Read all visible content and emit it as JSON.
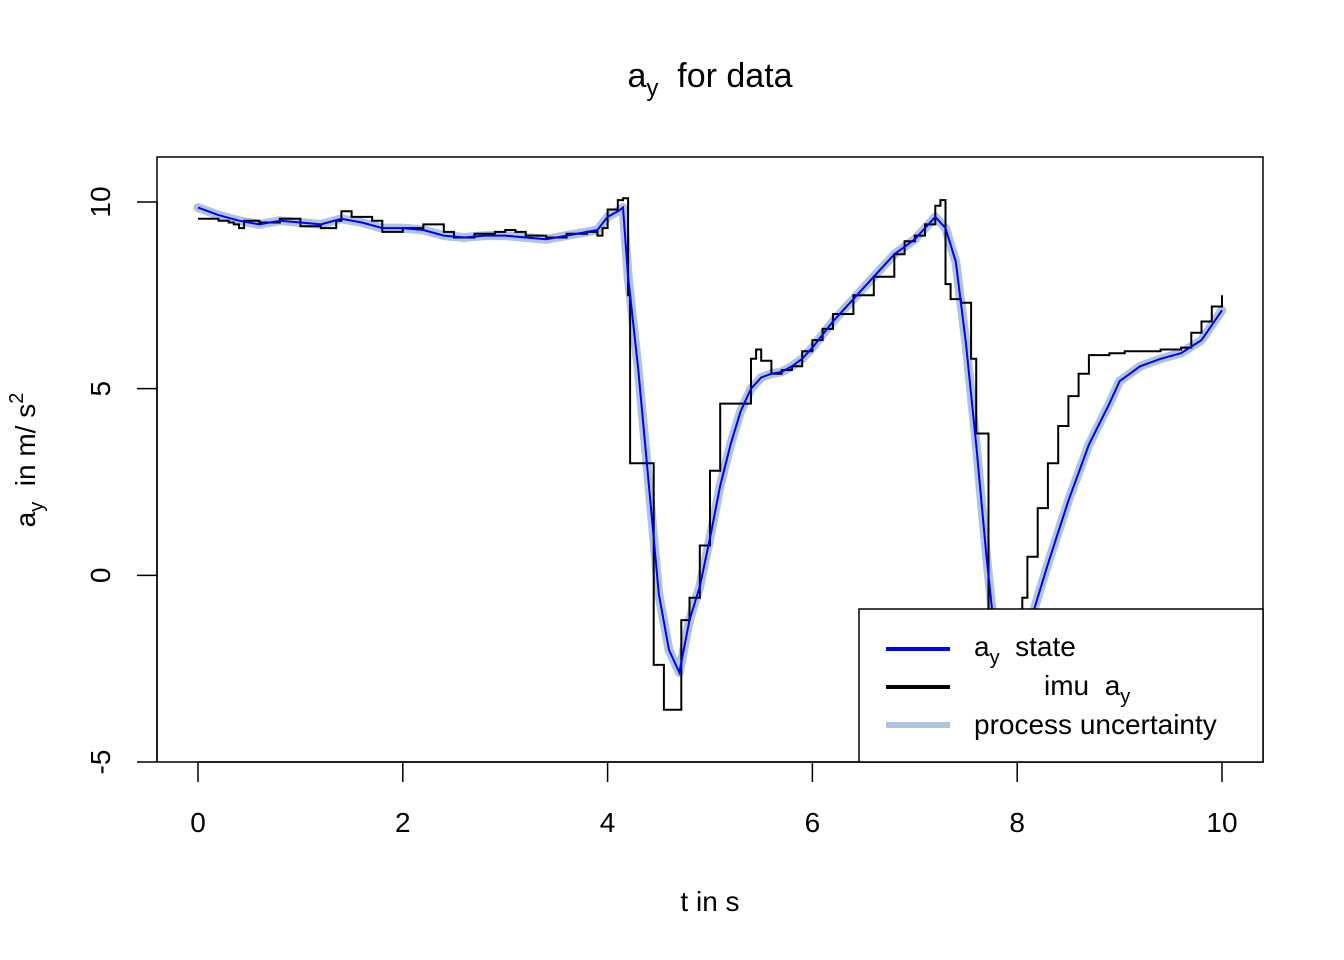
{
  "chart_data": {
    "type": "line",
    "title": {
      "main": "a",
      "sub": "y",
      "rest": "  for data"
    },
    "xlabel": "t in s",
    "ylabel": {
      "main": "a",
      "sub": "y",
      "rest": "  in m/ s",
      "sup": "2"
    },
    "xlim": [
      0,
      10
    ],
    "ylim": [
      -5,
      10
    ],
    "xticks": [
      "0",
      "2",
      "4",
      "6",
      "8",
      "10"
    ],
    "yticks": [
      "-5",
      "0",
      "5",
      "10"
    ],
    "legend_position": "bottom-right",
    "colors": {
      "state": "#0000ff",
      "imu": "#000000",
      "uncertainty": "#b0c4de"
    },
    "legend": [
      {
        "main": "a",
        "sub": "y",
        "rest": "  state",
        "series": "state"
      },
      {
        "main": "imu  a",
        "sub": "y",
        "rest": "",
        "series": "imu"
      },
      {
        "main": "process uncertainty",
        "sub": "",
        "rest": "",
        "series": "uncertainty"
      }
    ],
    "series": [
      {
        "name": "imu",
        "x": [
          0,
          0.2,
          0.3,
          0.35,
          0.4,
          0.45,
          0.6,
          0.8,
          1.0,
          1.2,
          1.35,
          1.4,
          1.5,
          1.7,
          1.8,
          2.0,
          2.2,
          2.4,
          2.5,
          2.7,
          2.9,
          3.0,
          3.1,
          3.2,
          3.4,
          3.6,
          3.8,
          3.9,
          3.95,
          4.0,
          4.1,
          4.15,
          4.2,
          4.22,
          4.35,
          4.45,
          4.55,
          4.6,
          4.65,
          4.7,
          4.72,
          4.8,
          4.9,
          5.0,
          5.1,
          5.2,
          5.35,
          5.4,
          5.45,
          5.5,
          5.6,
          5.7,
          5.8,
          5.9,
          6.0,
          6.1,
          6.2,
          6.4,
          6.6,
          6.8,
          6.9,
          7.0,
          7.1,
          7.2,
          7.25,
          7.3,
          7.35,
          7.45,
          7.55,
          7.6,
          7.7,
          7.72,
          7.8,
          7.9,
          8.0,
          8.05,
          8.1,
          8.2,
          8.3,
          8.4,
          8.5,
          8.6,
          8.7,
          8.8,
          8.9,
          9.0,
          9.05,
          9.2,
          9.4,
          9.6,
          9.7,
          9.8,
          9.9,
          10.0
        ],
        "y": [
          9.55,
          9.5,
          9.45,
          9.4,
          9.3,
          9.5,
          9.45,
          9.55,
          9.35,
          9.3,
          9.5,
          9.75,
          9.6,
          9.5,
          9.2,
          9.3,
          9.4,
          9.2,
          9.05,
          9.15,
          9.2,
          9.25,
          9.2,
          9.1,
          9.05,
          9.15,
          9.2,
          9.1,
          9.3,
          9.8,
          10.05,
          10.1,
          7.5,
          3.0,
          3.0,
          -2.4,
          -3.6,
          -3.6,
          -3.6,
          -3.6,
          -1.2,
          -0.6,
          0.8,
          2.8,
          4.6,
          4.6,
          4.6,
          5.8,
          6.05,
          5.75,
          5.4,
          5.5,
          5.6,
          6.0,
          6.3,
          6.6,
          7.0,
          7.5,
          8.0,
          8.6,
          8.95,
          9.1,
          9.4,
          9.9,
          10.05,
          7.8,
          7.4,
          7.3,
          5.8,
          3.8,
          3.8,
          -1.0,
          -2.5,
          -2.5,
          -1.5,
          -0.6,
          0.5,
          1.8,
          3.0,
          4.0,
          4.8,
          5.4,
          5.9,
          5.9,
          5.95,
          5.95,
          6.0,
          6.0,
          6.05,
          6.1,
          6.5,
          6.8,
          7.2,
          7.5
        ]
      },
      {
        "name": "state",
        "x": [
          0,
          0.2,
          0.4,
          0.6,
          0.8,
          1.0,
          1.2,
          1.4,
          1.6,
          1.8,
          2.0,
          2.2,
          2.4,
          2.6,
          2.8,
          3.0,
          3.2,
          3.4,
          3.6,
          3.8,
          3.9,
          4.0,
          4.1,
          4.15,
          4.2,
          4.3,
          4.4,
          4.5,
          4.6,
          4.7,
          4.8,
          4.9,
          5.0,
          5.1,
          5.2,
          5.3,
          5.4,
          5.5,
          5.6,
          5.7,
          5.8,
          5.9,
          6.0,
          6.2,
          6.4,
          6.6,
          6.8,
          7.0,
          7.2,
          7.3,
          7.4,
          7.5,
          7.6,
          7.7,
          7.75,
          7.8,
          7.9,
          8.0,
          8.1,
          8.3,
          8.5,
          8.7,
          8.9,
          9.0,
          9.2,
          9.4,
          9.6,
          9.8,
          10.0
        ],
        "y": [
          9.85,
          9.65,
          9.5,
          9.4,
          9.5,
          9.45,
          9.4,
          9.55,
          9.45,
          9.3,
          9.3,
          9.25,
          9.1,
          9.05,
          9.1,
          9.1,
          9.05,
          9.0,
          9.1,
          9.2,
          9.25,
          9.6,
          9.75,
          9.85,
          8.0,
          5.5,
          2.5,
          -0.5,
          -2.0,
          -2.6,
          -1.2,
          -0.3,
          1.0,
          2.4,
          3.5,
          4.4,
          5.0,
          5.3,
          5.4,
          5.45,
          5.6,
          5.8,
          6.1,
          6.8,
          7.4,
          8.0,
          8.6,
          9.0,
          9.6,
          9.3,
          8.4,
          6.2,
          3.5,
          0.5,
          -0.8,
          -2.1,
          -2.2,
          -2.3,
          -1.5,
          0.3,
          2.0,
          3.5,
          4.6,
          5.2,
          5.6,
          5.8,
          5.95,
          6.3,
          7.1
        ]
      }
    ]
  }
}
